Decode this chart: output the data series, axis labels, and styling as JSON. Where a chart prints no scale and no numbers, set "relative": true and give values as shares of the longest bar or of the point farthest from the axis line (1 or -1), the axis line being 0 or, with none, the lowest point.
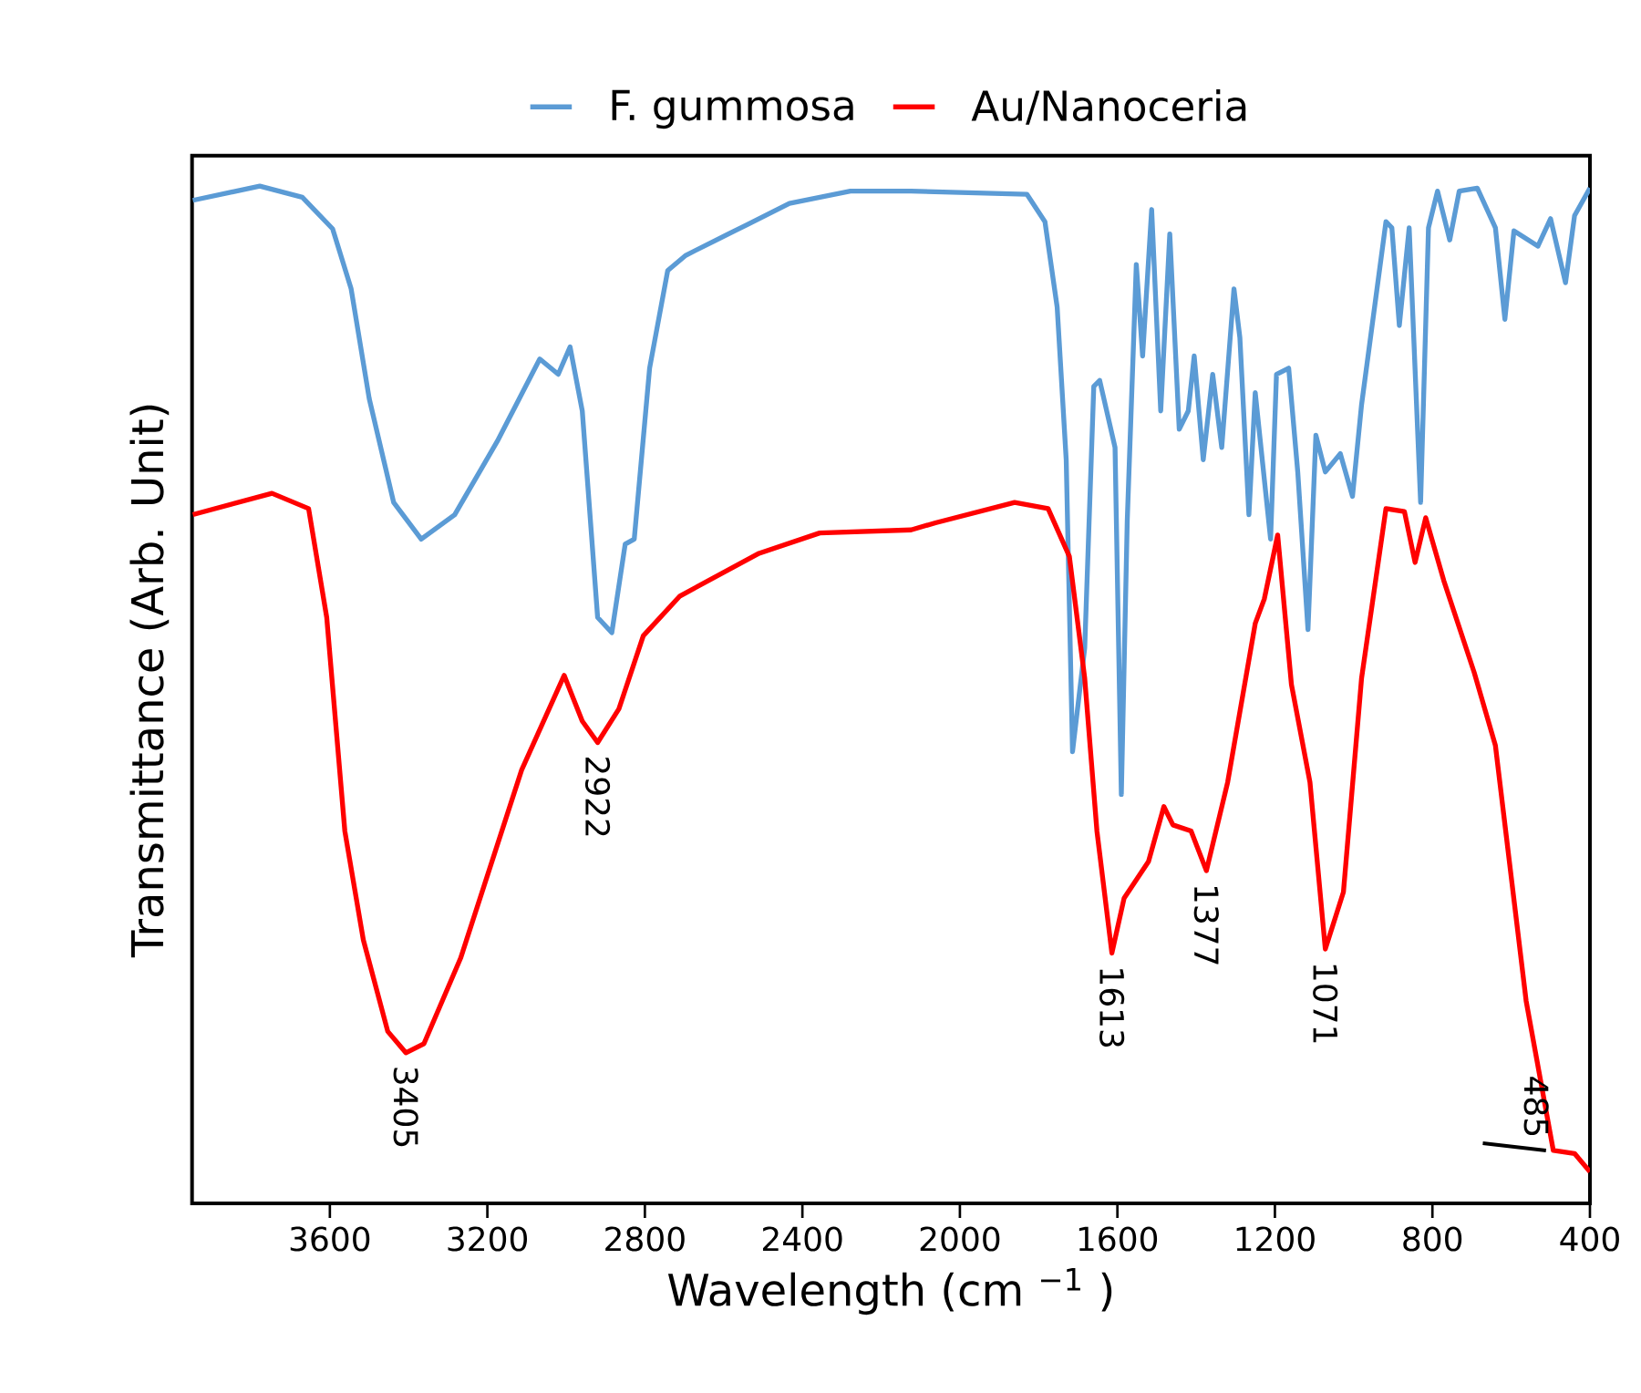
{
  "chart_data": {
    "type": "line",
    "relative": true,
    "xlabel": "Wavelength (cm $^{−1}$ )",
    "ylabel": "Transmittance (Arb. Unit)",
    "xlim": [
      3950,
      400
    ],
    "xticks": [
      3600,
      3200,
      2800,
      2400,
      2000,
      1600,
      1200,
      800,
      400
    ],
    "legend": "top",
    "marker": "none",
    "line_style": "solid",
    "series": [
      {
        "name": "F. gummosa",
        "color": "#5b9bd5",
        "x": [
          3948,
          3778,
          3670,
          3593,
          3546,
          3500,
          3438,
          3368,
          3283,
          3175,
          3067,
          3020,
          2990,
          2959,
          2920,
          2884,
          2850,
          2827,
          2788,
          2742,
          2696,
          2619,
          2541,
          2433,
          2278,
          2124,
          1830,
          1784,
          1753,
          1730,
          1714,
          1683,
          1660,
          1645,
          1606,
          1590,
          1575,
          1552,
          1536,
          1513,
          1490,
          1467,
          1443,
          1420,
          1405,
          1382,
          1358,
          1335,
          1304,
          1289,
          1266,
          1250,
          1211,
          1196,
          1165,
          1142,
          1116,
          1096,
          1072,
          1034,
          1003,
          980,
          918,
          903,
          884,
          859,
          830,
          810,
          787,
          756,
          732,
          686,
          640,
          616,
          593,
          532,
          500,
          462,
          439,
          400
        ],
        "values": [
          0.986,
          1.0,
          0.989,
          0.958,
          0.899,
          0.791,
          0.689,
          0.653,
          0.677,
          0.749,
          0.83,
          0.815,
          0.842,
          0.779,
          0.576,
          0.561,
          0.648,
          0.653,
          0.821,
          0.917,
          0.932,
          0.947,
          0.962,
          0.983,
          0.995,
          0.995,
          0.992,
          0.965,
          0.881,
          0.731,
          0.444,
          0.546,
          0.803,
          0.809,
          0.743,
          0.402,
          0.671,
          0.923,
          0.833,
          0.977,
          0.779,
          0.953,
          0.761,
          0.779,
          0.833,
          0.731,
          0.815,
          0.743,
          0.899,
          0.851,
          0.677,
          0.797,
          0.653,
          0.815,
          0.821,
          0.719,
          0.564,
          0.755,
          0.719,
          0.737,
          0.695,
          0.785,
          0.965,
          0.959,
          0.863,
          0.959,
          0.689,
          0.959,
          0.995,
          0.947,
          0.995,
          0.998,
          0.959,
          0.869,
          0.956,
          0.941,
          0.968,
          0.905,
          0.971,
          0.998
        ]
      },
      {
        "name": "Au/Nanoceria",
        "color": "#ff0000",
        "x": [
          3948,
          3747,
          3654,
          3608,
          3562,
          3515,
          3453,
          3407,
          3361,
          3268,
          3113,
          3005,
          2959,
          2920,
          2866,
          2804,
          2711,
          2510,
          2356,
          2124,
          2062,
          1861,
          1776,
          1722,
          1683,
          1652,
          1614,
          1583,
          1521,
          1482,
          1459,
          1413,
          1374,
          1320,
          1250,
          1227,
          1193,
          1158,
          1111,
          1072,
          1026,
          980,
          918,
          871,
          844,
          817,
          771,
          694,
          640,
          562,
          493,
          439,
          400
        ],
        "values": [
          0.677,
          0.698,
          0.683,
          0.576,
          0.366,
          0.259,
          0.169,
          0.148,
          0.157,
          0.241,
          0.426,
          0.519,
          0.474,
          0.453,
          0.486,
          0.558,
          0.597,
          0.639,
          0.659,
          0.662,
          0.669,
          0.689,
          0.683,
          0.636,
          0.516,
          0.366,
          0.246,
          0.3,
          0.336,
          0.39,
          0.372,
          0.366,
          0.327,
          0.414,
          0.57,
          0.594,
          0.657,
          0.51,
          0.414,
          0.25,
          0.306,
          0.516,
          0.683,
          0.68,
          0.63,
          0.674,
          0.612,
          0.522,
          0.45,
          0.199,
          0.052,
          0.049,
          0.031
        ]
      }
    ],
    "annotations": [
      {
        "text": "3405",
        "x": 3407,
        "y": 0.148
      },
      {
        "text": "2922",
        "x": 2920,
        "y": 0.453
      },
      {
        "text": "1613",
        "x": 1614,
        "y": 0.246
      },
      {
        "text": "1377",
        "x": 1374,
        "y": 0.327
      },
      {
        "text": "1071",
        "x": 1072,
        "y": 0.25
      },
      {
        "text": "485",
        "x": 493,
        "y": 0.052
      }
    ]
  }
}
